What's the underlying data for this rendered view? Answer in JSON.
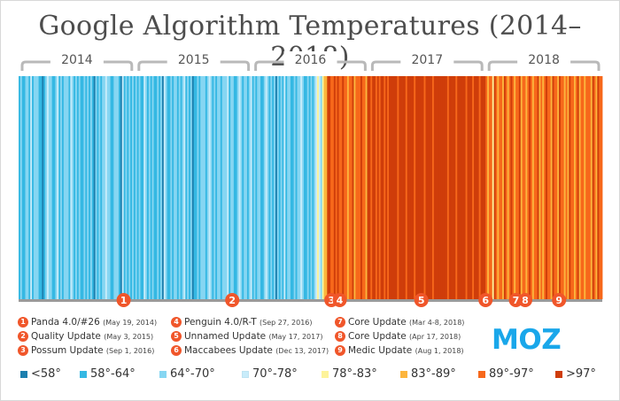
{
  "chart_data": {
    "type": "heatmap",
    "title": "Google Algorithm Temperatures (2014–2018)",
    "years": [
      "2014",
      "2015",
      "2016",
      "2017",
      "2018"
    ],
    "legend": [
      {
        "label": "<58°",
        "color": "#1c7fae"
      },
      {
        "label": "58°-64°",
        "color": "#35b8e3"
      },
      {
        "label": "64°-70°",
        "color": "#86d6f2"
      },
      {
        "label": "70°-78°",
        "color": "#c8ecfa"
      },
      {
        "label": "78°-83°",
        "color": "#fdf39a"
      },
      {
        "label": "83°-89°",
        "color": "#fcb53d"
      },
      {
        "label": "89°-97°",
        "color": "#f7681b"
      },
      {
        "label": ">97°",
        "color": "#cf3d0a"
      }
    ],
    "stripes_by_year": [
      "1211221312221101232211231212221321212112121210212122322112221031212121",
      "2121132121211212032112122121231212011212221232121221222312211232122123",
      "1212211232121202121312211212232112121234324557766767667665667566676657",
      "7677676776767777767777677776777776777767777777767777677777677767776777",
      "6566476566576567656675665676566756567665766576656576656756656665765766"
    ],
    "events": [
      {
        "num": "1",
        "name": "Panda 4.0/#26",
        "date": "(May 19, 2014)",
        "position": 0.18
      },
      {
        "num": "2",
        "name": "Quality Update",
        "date": "(May 3, 2015)",
        "position": 0.366
      },
      {
        "num": "3",
        "name": "Possum Update",
        "date": "(Sep 1, 2016)",
        "position": 0.536
      },
      {
        "num": "4",
        "name": "Penguin 4.0/R-T",
        "date": "(Sep 27, 2016)",
        "position": 0.55
      },
      {
        "num": "5",
        "name": "Unnamed Update",
        "date": "(May 17, 2017)",
        "position": 0.69
      },
      {
        "num": "6",
        "name": "Maccabees Update",
        "date": "(Dec 13, 2017)",
        "position": 0.8
      },
      {
        "num": "7",
        "name": "Core Update",
        "date": "(Mar 4-8, 2018)",
        "position": 0.852
      },
      {
        "num": "8",
        "name": "Core Update",
        "date": "(Apr 17, 2018)",
        "position": 0.868
      },
      {
        "num": "9",
        "name": "Medic Update",
        "date": "(Aug 1, 2018)",
        "position": 0.926
      }
    ]
  },
  "brand": {
    "logo_text": "MOZ",
    "color": "#1aa7ea"
  },
  "marker_color": "#f0562a"
}
